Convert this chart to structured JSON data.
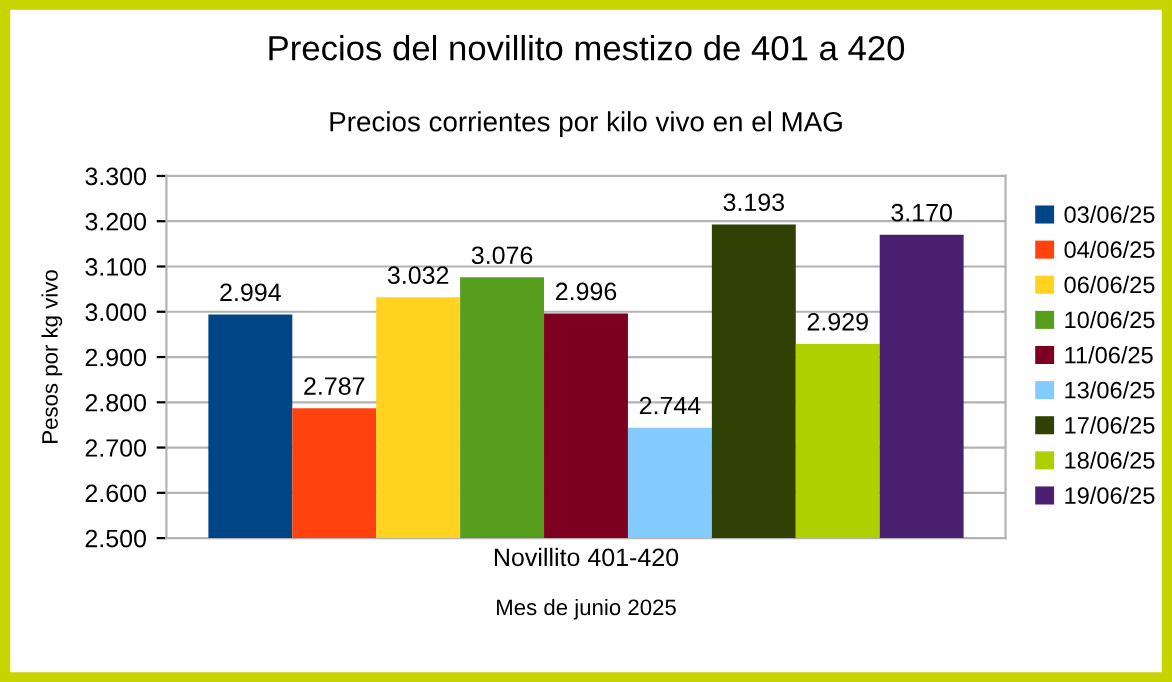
{
  "chart_data": {
    "type": "bar",
    "title": "Precios del novillito mestizo de 401 a 420",
    "subtitle": "Precios corrientes por kilo vivo en el MAG",
    "xlabel": "Mes de junio 2025",
    "ylabel": "Pesos por kg vivo",
    "categories": [
      "Novillito 401-420"
    ],
    "series": [
      {
        "name": "03/06/25",
        "color": "#004586",
        "values": [
          2994
        ],
        "value_labels": [
          "2.994"
        ]
      },
      {
        "name": "04/06/25",
        "color": "#ff420e",
        "values": [
          2787
        ],
        "value_labels": [
          "2.787"
        ]
      },
      {
        "name": "06/06/25",
        "color": "#ffd320",
        "values": [
          3032
        ],
        "value_labels": [
          "3.032"
        ]
      },
      {
        "name": "10/06/25",
        "color": "#579d1c",
        "values": [
          3076
        ],
        "value_labels": [
          "3.076"
        ]
      },
      {
        "name": "11/06/25",
        "color": "#7e0021",
        "values": [
          2996
        ],
        "value_labels": [
          "2.996"
        ]
      },
      {
        "name": "13/06/25",
        "color": "#83caff",
        "values": [
          2744
        ],
        "value_labels": [
          "2.744"
        ]
      },
      {
        "name": "17/06/25",
        "color": "#314004",
        "values": [
          3193
        ],
        "value_labels": [
          "3.193"
        ]
      },
      {
        "name": "18/06/25",
        "color": "#aecf00",
        "values": [
          2929
        ],
        "value_labels": [
          "2.929"
        ]
      },
      {
        "name": "19/06/25",
        "color": "#4b1f6f",
        "values": [
          3170
        ],
        "value_labels": [
          "3.170"
        ]
      }
    ],
    "ylim": [
      2500,
      3300
    ],
    "yticks": [
      {
        "value": 2500,
        "label": "2.500"
      },
      {
        "value": 2600,
        "label": "2.600"
      },
      {
        "value": 2700,
        "label": "2.700"
      },
      {
        "value": 2800,
        "label": "2.800"
      },
      {
        "value": 2900,
        "label": "2.900"
      },
      {
        "value": 3000,
        "label": "3.000"
      },
      {
        "value": 3100,
        "label": "3.100"
      },
      {
        "value": 3200,
        "label": "3.200"
      },
      {
        "value": 3300,
        "label": "3.300"
      }
    ],
    "grid": "y",
    "legend": "right"
  }
}
